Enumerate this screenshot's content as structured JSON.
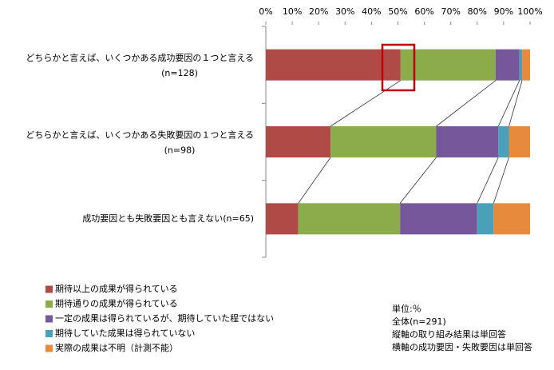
{
  "chart_data": {
    "type": "stacked-barh",
    "categories": [
      [
        "どちらかと言えば、いくつかある成功要因の１つと言える",
        "(n=128)"
      ],
      [
        "どちらかと言えば、いくつかある失敗要因の１つと言える",
        "(n=98)"
      ],
      [
        "成功要因とも失敗要因とも言えない(n=65)"
      ]
    ],
    "series": [
      {
        "name": "期待以上の成果が得られている",
        "color": "#b04a47",
        "values": [
          51,
          24.5,
          12.3
        ]
      },
      {
        "name": "期待通りの成果が得られている",
        "color": "#8cab4b",
        "values": [
          36,
          40,
          38.5
        ]
      },
      {
        "name": "一定の成果は得られているが、期待していた程ではない",
        "color": "#76579b",
        "values": [
          9,
          23.5,
          29.2
        ]
      },
      {
        "name": "期待していた成果は得られていない",
        "color": "#4aa0b8",
        "values": [
          1,
          4,
          6.2
        ]
      },
      {
        "name": "実際の成果は不明（計測不能）",
        "color": "#e88a3c",
        "values": [
          3,
          8,
          13.8
        ]
      }
    ],
    "xlim": [
      0,
      100
    ],
    "xticks": [
      {
        "value": 0,
        "label": "0%"
      },
      {
        "value": 10,
        "label": "10%"
      },
      {
        "value": 20,
        "label": "20%"
      },
      {
        "value": 30,
        "label": "30%"
      },
      {
        "value": 40,
        "label": "40%"
      },
      {
        "value": 50,
        "label": "50%"
      },
      {
        "value": 60,
        "label": "60%"
      },
      {
        "value": 70,
        "label": "70%"
      },
      {
        "value": 80,
        "label": "80%"
      },
      {
        "value": 90,
        "label": "90%"
      },
      {
        "value": 100,
        "label": "100%"
      }
    ],
    "notes": [
      "単位:％",
      "全体(n=291)",
      "縦軸の取り組み結果は単回答",
      "横軸の成功要因・失敗要因は単回答"
    ]
  }
}
